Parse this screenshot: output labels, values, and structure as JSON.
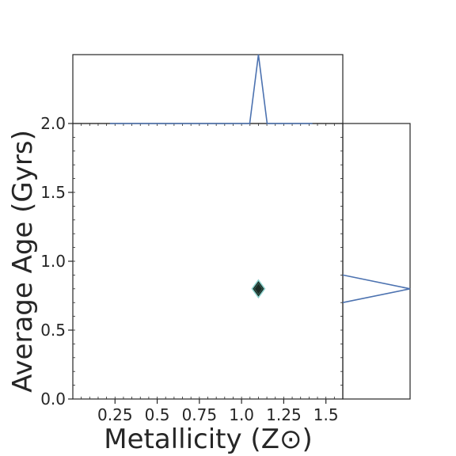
{
  "chart_data": {
    "type": "scatter",
    "xlabel": "Metallicity (Z⊙)",
    "ylabel": "Average Age (Gyrs)",
    "xlim": [
      0,
      1.6
    ],
    "ylim": [
      0,
      2.0
    ],
    "xticks": [
      "0.25",
      "0.5",
      "0.75",
      "1.0",
      "1.25",
      "1.5"
    ],
    "yticks": [
      "0.0",
      "0.5",
      "1.0",
      "1.5",
      "2.0"
    ],
    "points": [
      {
        "x": 1.1,
        "y": 0.8
      }
    ],
    "top_marginal": {
      "type": "line",
      "peak_x": 1.1,
      "x_range": [
        0.22,
        1.42
      ]
    },
    "right_marginal": {
      "type": "line",
      "peak_y": 0.8,
      "y_range": [
        0.7,
        0.9
      ]
    },
    "grid": false,
    "colors": {
      "line": "#4c72b0",
      "point_fill": "#1b2a24",
      "point_edge": "#8fd4cf",
      "axes": "#262626"
    }
  }
}
